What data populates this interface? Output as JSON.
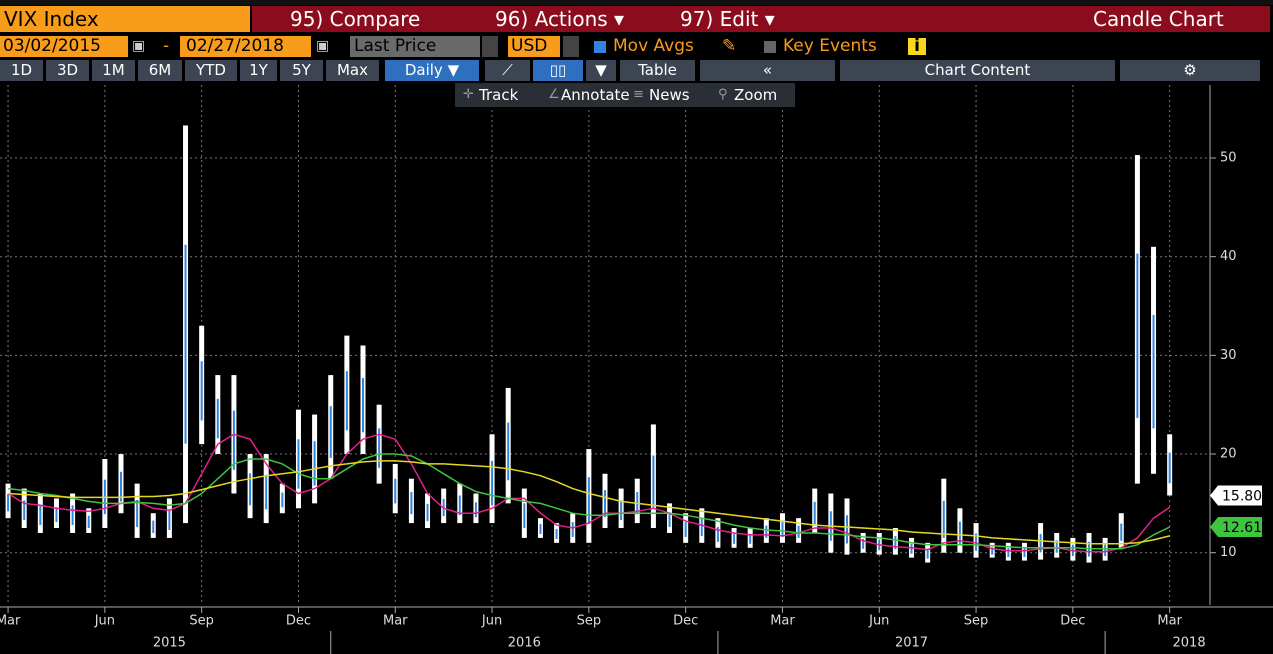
{
  "toolbar": {
    "security": "VIX Index",
    "compare": "95) Compare",
    "actions": "96) Actions ▾",
    "edit": "97) Edit ▾",
    "chart_type": "Candle Chart",
    "start_date": "03/02/2015",
    "dash": "-",
    "end_date": "02/27/2018",
    "field": "Last Price",
    "currency": "USD",
    "mov_avgs": "Mov Avgs",
    "key_events": "Key Events",
    "periods": [
      "1D",
      "3D",
      "1M",
      "6M",
      "YTD",
      "1Y",
      "5Y",
      "Max"
    ],
    "frequency": "Daily ▼",
    "table": "Table",
    "collapse": "«",
    "chart_content": "Chart Content",
    "tools": [
      "Track",
      "Annotate",
      "News",
      "Zoom"
    ]
  },
  "chart_data": {
    "type": "candlestick",
    "categories": [
      null,
      null,
      null,
      null,
      null,
      null,
      null,
      null,
      null,
      null,
      null,
      null,
      null,
      null,
      null,
      null,
      null,
      null,
      null,
      null,
      null,
      null,
      null,
      null,
      null,
      null,
      null,
      null,
      null,
      null,
      null,
      null,
      null,
      null,
      null,
      null,
      null,
      null,
      null,
      null,
      null,
      null,
      null,
      null,
      null,
      null,
      null,
      null,
      null,
      null,
      null,
      null,
      null,
      null,
      null,
      null,
      null,
      null,
      null,
      null,
      null,
      null,
      null,
      null,
      null,
      null,
      null,
      null,
      null,
      null,
      null,
      null,
      null
    ],
    "high": [
      17,
      16.5,
      16,
      15.5,
      16,
      14.5,
      19.5,
      20,
      17,
      14,
      15.5,
      53.3,
      33,
      28,
      28,
      20,
      20,
      17,
      24.5,
      24,
      28,
      32,
      31,
      25,
      19,
      17.5,
      16,
      16.5,
      17,
      16,
      22,
      26.7,
      16.5,
      13.5,
      13,
      14,
      20.5,
      18,
      16.5,
      17.5,
      23,
      15,
      14,
      14.5,
      13.5,
      12.5,
      12.5,
      13.5,
      14,
      13.5,
      16.5,
      16,
      15.5,
      12,
      12,
      12.5,
      11.5,
      11,
      17.5,
      14.5,
      13,
      11,
      11,
      11,
      13,
      12,
      11.5,
      12,
      11.5,
      14,
      50.3,
      41,
      22
    ],
    "low": [
      13.5,
      12.5,
      12,
      12.5,
      12,
      12,
      12.5,
      14,
      11.5,
      11.5,
      11.5,
      13,
      21,
      20,
      16,
      13.5,
      13,
      14,
      14.5,
      15,
      17.5,
      20,
      20,
      17,
      14,
      13,
      12.5,
      13,
      13,
      13,
      13,
      15,
      11.5,
      11.5,
      11,
      11,
      11,
      12.5,
      12.5,
      13,
      12.5,
      12,
      11,
      11,
      10.5,
      10.5,
      10.5,
      11,
      11,
      11,
      12,
      10,
      9.8,
      10,
      9.8,
      9.8,
      9.5,
      9,
      10,
      10,
      9.5,
      9.5,
      9.2,
      9.2,
      9.3,
      9.5,
      9.2,
      9,
      9.2,
      10.5,
      17,
      18,
      15.8
    ],
    "candle_color": "#ffffff",
    "body_color": "#2f86e0",
    "series": [
      {
        "color": "#e0208a",
        "values": [
          16,
          15,
          14.8,
          14.5,
          14.3,
          14.2,
          14.5,
          15,
          15.2,
          14.5,
          14.3,
          15,
          18,
          21,
          22,
          21.5,
          19,
          17,
          16,
          16.5,
          17.5,
          20,
          21.5,
          22,
          21.5,
          19,
          16,
          14.5,
          14,
          14,
          14.5,
          15.5,
          15.5,
          14,
          12.8,
          12.5,
          13,
          14,
          14,
          14.2,
          14.5,
          14,
          13.2,
          12.8,
          12.3,
          12,
          11.8,
          11.8,
          11.7,
          12,
          12.5,
          12.5,
          12,
          11.2,
          10.8,
          10.6,
          10.5,
          10.3,
          11,
          11.2,
          11,
          10.4,
          10.2,
          10.2,
          10.4,
          10.5,
          10.2,
          10.1,
          10.1,
          10.5,
          11.5,
          13.5,
          14.6
        ]
      },
      {
        "color": "#3ec43e",
        "values": [
          16.5,
          16.3,
          16,
          15.8,
          15.5,
          15.2,
          15,
          15,
          15.1,
          15,
          14.8,
          15,
          16,
          17.5,
          19,
          19.5,
          19.5,
          19,
          18,
          17.5,
          17.5,
          18.5,
          19.5,
          20,
          20,
          19.8,
          19,
          18,
          17,
          16.2,
          15.8,
          15.5,
          15.2,
          15,
          14.5,
          14,
          13.8,
          13.8,
          14,
          14,
          14,
          14,
          13.8,
          13.5,
          13.2,
          12.8,
          12.5,
          12.3,
          12.2,
          12,
          12,
          11.9,
          11.8,
          11.6,
          11.5,
          11.3,
          11,
          10.8,
          10.8,
          10.8,
          10.8,
          10.7,
          10.6,
          10.5,
          10.5,
          10.5,
          10.5,
          10.4,
          10.4,
          10.4,
          10.8,
          11.8,
          12.61
        ]
      },
      {
        "color": "#e6d820",
        "values": [
          16,
          15.9,
          15.8,
          15.7,
          15.6,
          15.6,
          15.6,
          15.6,
          15.7,
          15.7,
          15.8,
          16,
          16.4,
          16.8,
          17.2,
          17.5,
          17.8,
          18,
          18.2,
          18.5,
          18.8,
          19,
          19.2,
          19.3,
          19.3,
          19.2,
          19,
          19,
          18.9,
          18.8,
          18.7,
          18.5,
          18.2,
          17.8,
          17.2,
          16.5,
          16,
          15.6,
          15.2,
          15,
          14.8,
          14.6,
          14.4,
          14.2,
          14,
          13.8,
          13.6,
          13.4,
          13.2,
          13,
          12.8,
          12.7,
          12.6,
          12.5,
          12.4,
          12.3,
          12.1,
          12,
          11.9,
          11.8,
          11.7,
          11.5,
          11.4,
          11.3,
          11.2,
          11.1,
          11,
          10.9,
          10.9,
          10.9,
          11,
          11.3,
          11.7
        ]
      }
    ],
    "price_tags": [
      {
        "value": 15.8,
        "label": "15.80",
        "color": "#ffffff"
      },
      {
        "value": 12.61,
        "label": "12.61",
        "color": "#3ec43e"
      }
    ],
    "ylim": [
      4.7,
      57.4
    ],
    "yticks": [
      10,
      20,
      30,
      40,
      50
    ],
    "xlim": [
      -0.5,
      74.5
    ],
    "xticks": [
      {
        "value": 0,
        "label": "Mar"
      },
      {
        "value": 6,
        "label": "Jun"
      },
      {
        "value": 12,
        "label": "Sep"
      },
      {
        "value": 18,
        "label": "Dec"
      },
      {
        "value": 24,
        "label": "Mar"
      },
      {
        "value": 30,
        "label": "Jun"
      },
      {
        "value": 36,
        "label": "Sep"
      },
      {
        "value": 42,
        "label": "Dec"
      },
      {
        "value": 48,
        "label": "Mar"
      },
      {
        "value": 54,
        "label": "Jun"
      },
      {
        "value": 60,
        "label": "Sep"
      },
      {
        "value": 66,
        "label": "Dec"
      },
      {
        "value": 72,
        "label": "Mar"
      }
    ],
    "year_ticks": [
      {
        "value": 0,
        "label": "2015"
      },
      {
        "value": 20,
        "label": "2016"
      },
      {
        "value": 44,
        "label": "2017"
      },
      {
        "value": 68,
        "label": "2018"
      }
    ],
    "grid": true
  }
}
